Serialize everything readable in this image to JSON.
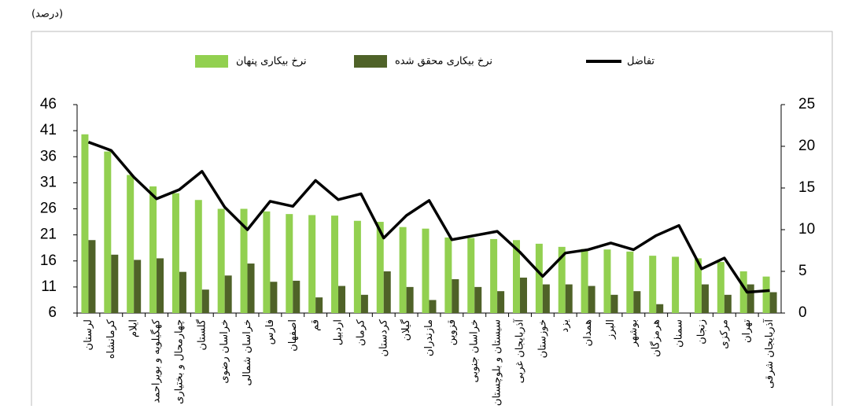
{
  "chart_data": {
    "type": "bar",
    "unit_label": "(درصد)",
    "categories": [
      "لرستان",
      "کرمانشاه",
      "ایلام",
      "کهگیلویه و بویراحمد",
      "چهارمحال و بختیاری",
      "گلستان",
      "خراسان رضوی",
      "خراسان شمالی",
      "فارس",
      "اصفهان",
      "قم",
      "اردبیل",
      "کرمان",
      "کردستان",
      "گیلان",
      "مازندران",
      "قزوین",
      "خراسان جنوبی",
      "سیستان و بلوچستان",
      "آذربایجان غربی",
      "خوزستان",
      "یزد",
      "همدان",
      "البرز",
      "بوشهر",
      "هرمزگان",
      "سمنان",
      "زنجان",
      "مرکزی",
      "تهران",
      "آذربایجان شرقی"
    ],
    "series": [
      {
        "name": "نرخ بیکاری پنهان",
        "color": "#92d050",
        "values": [
          40.3,
          37,
          32.5,
          30.3,
          29,
          27.7,
          26,
          26,
          25.5,
          25,
          24.8,
          24.7,
          23.7,
          23.5,
          22.5,
          22.2,
          20.5,
          20.4,
          20.2,
          20,
          19.3,
          18.7,
          18.3,
          18.2,
          17.8,
          17,
          16.8,
          16.5,
          15.8,
          14,
          13
        ]
      },
      {
        "name": "نرخ بیکاری محقق شده",
        "color": "#4f6228",
        "values": [
          20,
          17.2,
          16.2,
          16.5,
          13.9,
          10.5,
          13.2,
          15.5,
          12,
          12.2,
          9,
          11.2,
          9.5,
          14,
          11,
          8.5,
          12.5,
          11,
          10.2,
          12.8,
          11.5,
          11.5,
          11.2,
          9.5,
          10.2,
          7.7,
          6,
          11.5,
          9.5,
          11.5,
          10
        ]
      },
      {
        "name": "تفاضل",
        "color": "#000000",
        "axis": "y2",
        "values": [
          20.5,
          19.5,
          16.3,
          13.7,
          14.8,
          17,
          12.7,
          10,
          13.4,
          12.8,
          15.9,
          13.6,
          14.3,
          9,
          11.7,
          13.5,
          8.8,
          9.3,
          9.8,
          7.3,
          4.4,
          7.2,
          7.6,
          8.4,
          7.6,
          9.3,
          10.5,
          5.3,
          6.6,
          2.5,
          2.7
        ]
      }
    ],
    "ylim": [
      6,
      46
    ],
    "yticks": [
      6,
      11,
      16,
      21,
      26,
      31,
      36,
      41,
      46
    ],
    "y2lim": [
      0,
      25
    ],
    "y2ticks": [
      0,
      5,
      10,
      15,
      20,
      25
    ],
    "grid": false
  }
}
